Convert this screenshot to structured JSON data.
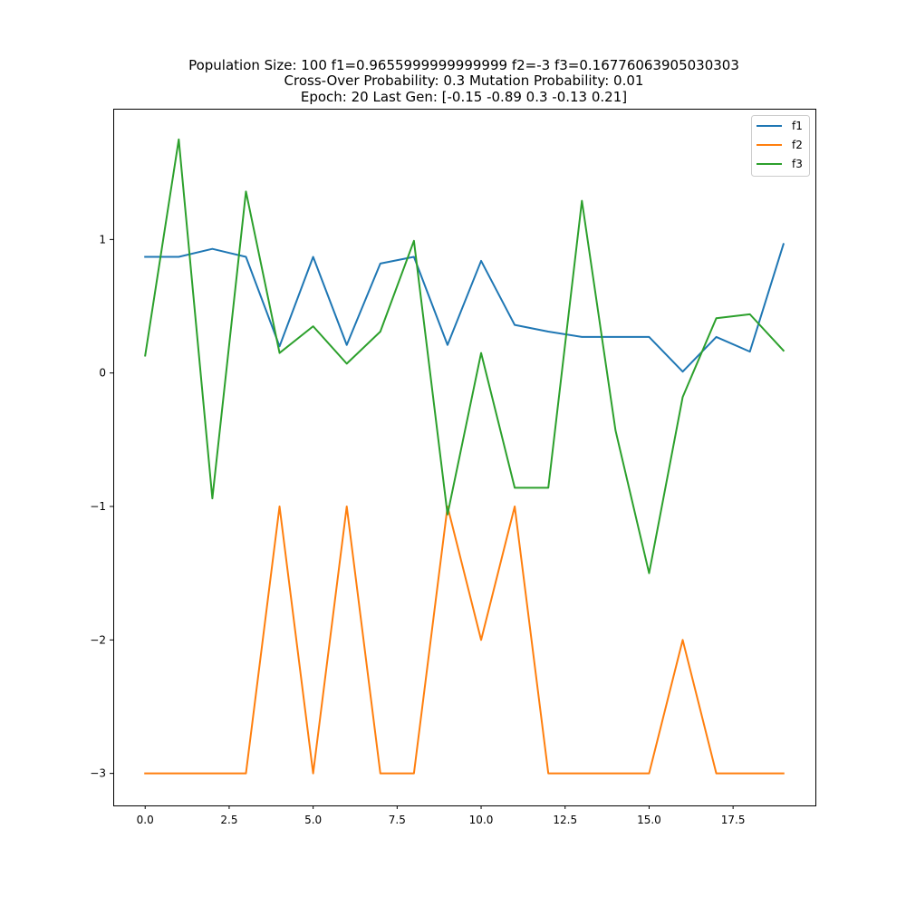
{
  "chart_data": {
    "type": "line",
    "title_lines": [
      "Population Size: 100 f1=0.9655999999999999 f2=-3 f3=0.16776063905030303",
      "Cross-Over Probability: 0.3 Mutation Probability: 0.01",
      "Epoch: 20 Last Gen: [-0.15 -0.89  0.3  -0.13  0.21]"
    ],
    "xlabel": "",
    "ylabel": "",
    "xlim": [
      -0.95,
      19.95
    ],
    "ylim": [
      -3.24,
      1.98
    ],
    "x_ticks": [
      0.0,
      2.5,
      5.0,
      7.5,
      10.0,
      12.5,
      15.0,
      17.5
    ],
    "x_tick_labels": [
      "0.0",
      "2.5",
      "5.0",
      "7.5",
      "10.0",
      "12.5",
      "15.0",
      "17.5"
    ],
    "y_ticks": [
      -3,
      -2,
      -1,
      0,
      1
    ],
    "y_tick_labels": [
      "−3",
      "−2",
      "−1",
      "0",
      "1"
    ],
    "grid": false,
    "legend_position": "top-right",
    "x": [
      0,
      1,
      2,
      3,
      4,
      5,
      6,
      7,
      8,
      9,
      10,
      11,
      12,
      13,
      14,
      15,
      16,
      17,
      18,
      19
    ],
    "series": [
      {
        "name": "f1",
        "color": "#1f77b4",
        "values": [
          0.87,
          0.87,
          0.93,
          0.87,
          0.2,
          0.87,
          0.21,
          0.82,
          0.87,
          0.21,
          0.84,
          0.36,
          0.31,
          0.27,
          0.27,
          0.27,
          0.01,
          0.27,
          0.16,
          0.9656
        ]
      },
      {
        "name": "f2",
        "color": "#ff7f0e",
        "values": [
          -3,
          -3,
          -3,
          -3,
          -1,
          -3,
          -1,
          -3,
          -3,
          -1,
          -2,
          -1,
          -3,
          -3,
          -3,
          -3,
          -2,
          -3,
          -3,
          -3
        ]
      },
      {
        "name": "f3",
        "color": "#2ca02c",
        "values": [
          0.13,
          1.75,
          -0.94,
          1.36,
          0.15,
          0.35,
          0.07,
          0.31,
          0.99,
          -1.06,
          0.15,
          -0.86,
          -0.86,
          1.29,
          -0.43,
          -1.5,
          -0.18,
          0.41,
          0.44,
          0.1678
        ]
      }
    ]
  }
}
